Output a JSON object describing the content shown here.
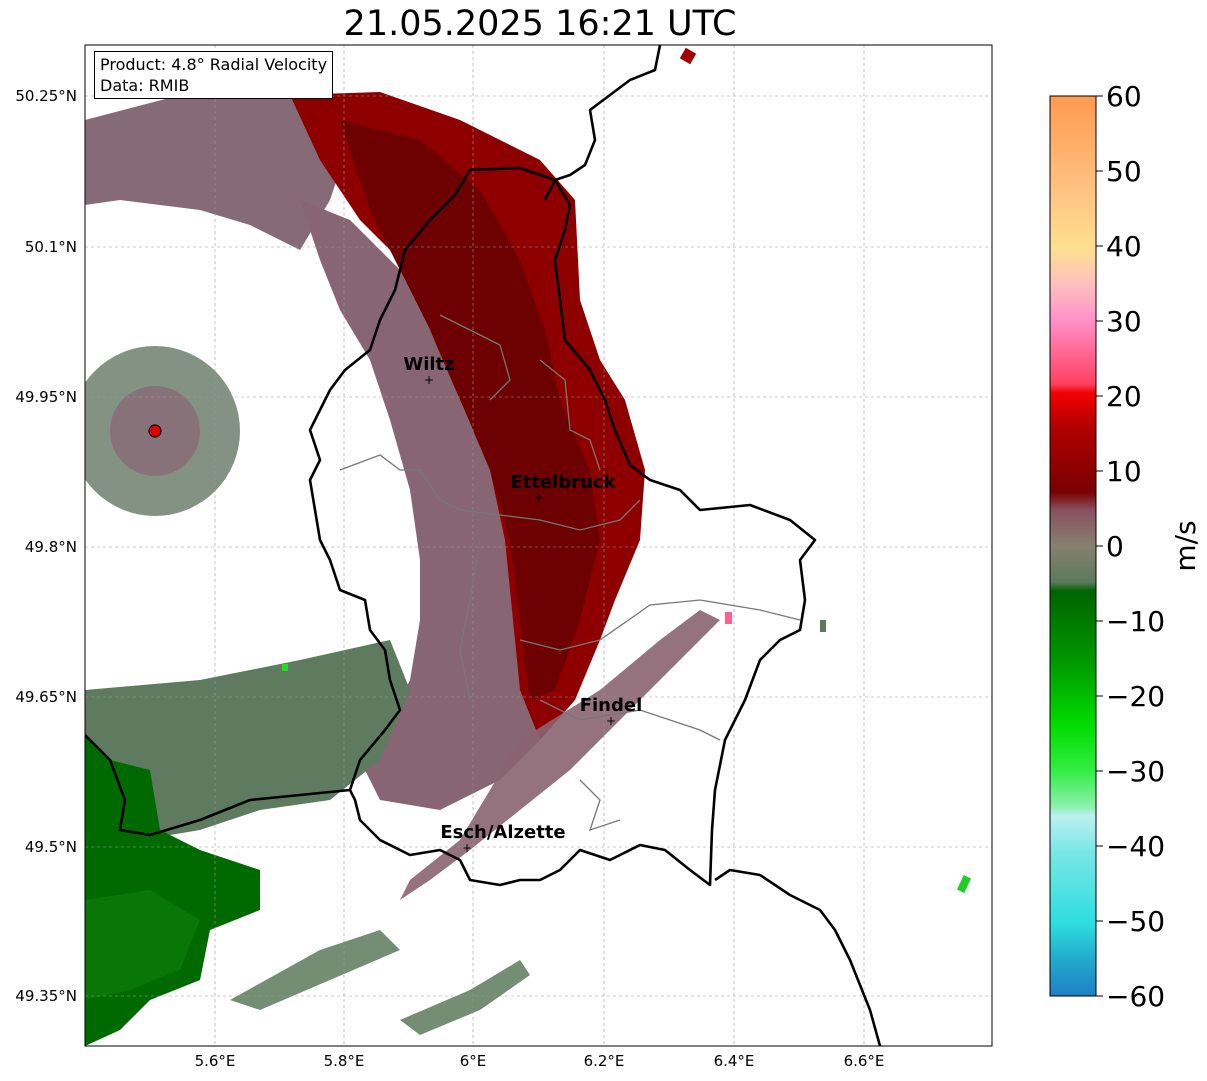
{
  "title": "21.05.2025 16:21 UTC",
  "info": {
    "product_label": "Product: 4.8° Radial Velocity",
    "data_label": "Data: RMIB"
  },
  "axes": {
    "lon_ticks": [
      "5.6°E",
      "5.8°E",
      "6°E",
      "6.2°E",
      "6.4°E",
      "6.6°E"
    ],
    "lat_ticks": [
      "50.25°N",
      "50.1°N",
      "49.95°N",
      "49.8°N",
      "49.65°N",
      "49.5°N",
      "49.35°N"
    ]
  },
  "cities": [
    {
      "name": "Wiltz",
      "lon": 5.93,
      "lat": 49.97
    },
    {
      "name": "Ettelbruck",
      "lon": 6.1,
      "lat": 49.85
    },
    {
      "name": "Findel",
      "lon": 6.21,
      "lat": 49.63
    },
    {
      "name": "Esch/Alzette",
      "lon": 5.99,
      "lat": 49.5
    }
  ],
  "radar_site": {
    "lon": 5.505,
    "lat": 49.915
  },
  "colorbar": {
    "label": "m/s",
    "ticks": [
      "60",
      "50",
      "40",
      "30",
      "20",
      "10",
      "0",
      "−10",
      "−20",
      "−30",
      "−40",
      "−50",
      "−60"
    ],
    "min": -60,
    "max": 60
  },
  "colors": {
    "outbound_dark": "#7a0000",
    "outbound_mid": "#a00000",
    "near_zero_pos": "#8a6470",
    "near_zero_neg": "#5e7a5e",
    "inbound_dark": "#006400",
    "inbound_bright": "#00dd00"
  }
}
